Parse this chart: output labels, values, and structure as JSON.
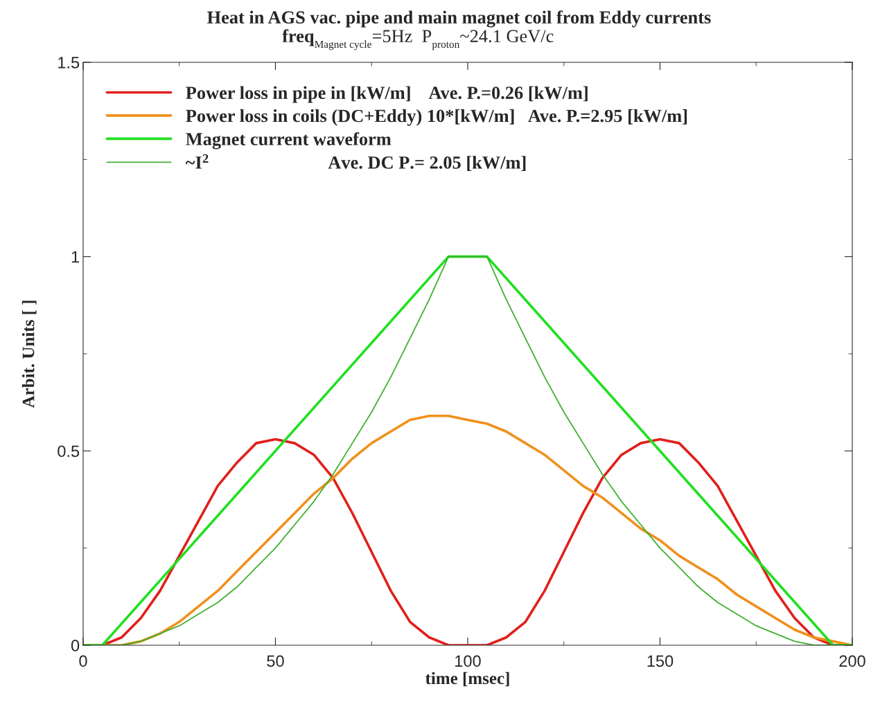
{
  "chart_data": {
    "type": "line",
    "title": "Heat in AGS vac. pipe and main magnet coil from Eddy currents",
    "subtitle": "freq$_{Magnet cycle}$=5Hz  P$_{proton}$~24.1 GeV/c",
    "xlabel": "time [msec]",
    "ylabel": "Arbit. Units [ ]",
    "x": [
      0,
      5,
      10,
      15,
      20,
      25,
      30,
      35,
      40,
      45,
      50,
      55,
      60,
      65,
      70,
      75,
      80,
      85,
      90,
      95,
      100,
      105,
      110,
      115,
      120,
      125,
      130,
      135,
      140,
      145,
      150,
      155,
      160,
      165,
      170,
      175,
      180,
      185,
      190,
      195,
      200
    ],
    "series": [
      {
        "name": "Power loss in pipe in [kW/m]    Ave. P.=0.26 [kW/m]",
        "color": "#e0201c",
        "values": [
          0,
          0,
          0.02,
          0.07,
          0.14,
          0.23,
          0.32,
          0.41,
          0.47,
          0.52,
          0.53,
          0.52,
          0.49,
          0.43,
          0.34,
          0.24,
          0.14,
          0.06,
          0.02,
          0,
          0,
          0,
          0.02,
          0.06,
          0.14,
          0.24,
          0.34,
          0.43,
          0.49,
          0.52,
          0.53,
          0.52,
          0.47,
          0.41,
          0.32,
          0.23,
          0.14,
          0.07,
          0.02,
          0,
          0
        ]
      },
      {
        "name": "Power loss in coils (DC+Eddy) 10*[kW/m]   Ave. P.=2.95 [kW/m]",
        "color": "#f0901c",
        "values": [
          0,
          0,
          0,
          0.01,
          0.03,
          0.06,
          0.1,
          0.14,
          0.19,
          0.24,
          0.29,
          0.34,
          0.39,
          0.43,
          0.48,
          0.52,
          0.55,
          0.58,
          0.59,
          0.59,
          0.58,
          0.57,
          0.55,
          0.52,
          0.49,
          0.45,
          0.41,
          0.38,
          0.34,
          0.3,
          0.27,
          0.23,
          0.2,
          0.17,
          0.13,
          0.1,
          0.07,
          0.04,
          0.02,
          0.01,
          0
        ]
      },
      {
        "name": "Magnet current waveform",
        "color": "#20e020",
        "x": [
          0,
          5,
          95,
          105,
          195,
          200
        ],
        "values": [
          0,
          0,
          1,
          1,
          0,
          0
        ]
      },
      {
        "name": "~I$^{2}$                          Ave. DC P.= 2.05 [kW/m]",
        "color": "#40b030",
        "values": [
          0,
          0,
          0,
          0.01,
          0.03,
          0.05,
          0.08,
          0.11,
          0.15,
          0.2,
          0.25,
          0.31,
          0.37,
          0.44,
          0.52,
          0.6,
          0.69,
          0.79,
          0.89,
          1,
          1,
          1,
          0.89,
          0.79,
          0.69,
          0.6,
          0.52,
          0.44,
          0.37,
          0.31,
          0.25,
          0.2,
          0.15,
          0.11,
          0.08,
          0.05,
          0.03,
          0.01,
          0,
          0,
          0
        ]
      }
    ],
    "xlim": [
      0,
      200
    ],
    "xticks": [
      0,
      50,
      100,
      150,
      200
    ],
    "ylim": [
      0,
      1.5
    ],
    "yticks": [
      0,
      0.5,
      1,
      1.5
    ],
    "grid": false,
    "legend": "top left",
    "marker": "none",
    "line_style": "solid"
  }
}
